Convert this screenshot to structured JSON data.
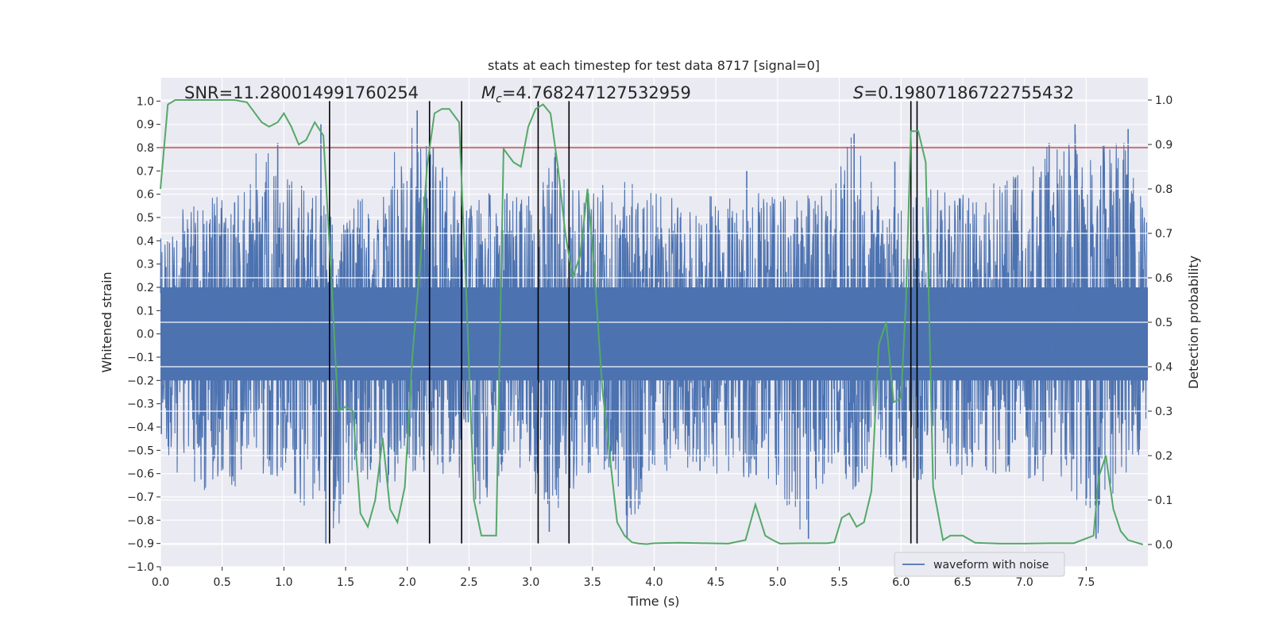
{
  "chart_data": {
    "type": "line",
    "title": "stats at each timestep for test data 8717 [signal=0]",
    "xlabel": "Time (s)",
    "ylabel_left": "Whitened strain",
    "ylabel_right": "Detection probability",
    "xlim": [
      0.0,
      8.0
    ],
    "ylim_left": [
      -1.0,
      1.1
    ],
    "ylim_right": [
      -0.05,
      1.05
    ],
    "x_ticks": [
      "0.0",
      "0.5",
      "1.0",
      "1.5",
      "2.0",
      "2.5",
      "3.0",
      "3.5",
      "4.0",
      "4.5",
      "5.0",
      "5.5",
      "6.0",
      "6.5",
      "7.0",
      "7.5"
    ],
    "x_tick_values": [
      0.0,
      0.5,
      1.0,
      1.5,
      2.0,
      2.5,
      3.0,
      3.5,
      4.0,
      4.5,
      5.0,
      5.5,
      6.0,
      6.5,
      7.0,
      7.5
    ],
    "y_left_ticks": [
      "−1.0",
      "−0.9",
      "−0.8",
      "−0.7",
      "−0.6",
      "−0.5",
      "−0.4",
      "−0.3",
      "−0.2",
      "−0.1",
      "0.0",
      "0.1",
      "0.2",
      "0.3",
      "0.4",
      "0.5",
      "0.6",
      "0.7",
      "0.8",
      "0.9",
      "1.0"
    ],
    "y_left_tick_values": [
      -1.0,
      -0.9,
      -0.8,
      -0.7,
      -0.6,
      -0.5,
      -0.4,
      -0.3,
      -0.2,
      -0.1,
      0.0,
      0.1,
      0.2,
      0.3,
      0.4,
      0.5,
      0.6,
      0.7,
      0.8,
      0.9,
      1.0
    ],
    "y_right_ticks": [
      "0.0",
      "0.1",
      "0.2",
      "0.3",
      "0.4",
      "0.5",
      "0.6",
      "0.7",
      "0.8",
      "0.9",
      "1.0"
    ],
    "y_right_tick_values": [
      0.0,
      0.1,
      0.2,
      0.3,
      0.4,
      0.5,
      0.6,
      0.7,
      0.8,
      0.9,
      1.0
    ],
    "grid": true,
    "legend": {
      "position": "lower-right",
      "entries": [
        "waveform with noise"
      ]
    },
    "annotations": {
      "snr": "SNR=11.280014991760254",
      "mc_symbol": "M",
      "mc_sub": "c",
      "mc_value": "=4.768247127532959",
      "s_symbol": "S",
      "s_value": "=0.19807186722755432"
    },
    "threshold_line": {
      "y": 0.8,
      "axis": "left",
      "color": "#c44e52"
    },
    "vertical_lines_x": [
      1.37,
      2.18,
      2.44,
      3.06,
      3.31,
      6.08,
      6.13
    ],
    "waveform": {
      "name": "waveform with noise",
      "color": "#4c72b0",
      "envelope_x": [
        0.0,
        0.2,
        0.4,
        0.6,
        0.8,
        1.0,
        1.2,
        1.4,
        1.6,
        1.8,
        2.0,
        2.2,
        2.4,
        2.6,
        2.8,
        3.0,
        3.2,
        3.4,
        3.6,
        3.8,
        4.0,
        4.2,
        4.4,
        4.6,
        4.8,
        5.0,
        5.2,
        5.4,
        5.6,
        5.8,
        6.0,
        6.2,
        6.4,
        6.6,
        6.8,
        7.0,
        7.2,
        7.4,
        7.6,
        7.8,
        7.99
      ],
      "envelope_upper": [
        0.42,
        0.55,
        0.6,
        0.6,
        0.82,
        0.7,
        0.62,
        0.55,
        0.58,
        0.62,
        0.96,
        0.8,
        0.6,
        0.6,
        0.65,
        0.65,
        0.78,
        0.62,
        0.68,
        0.66,
        0.62,
        0.6,
        0.6,
        0.6,
        0.62,
        0.6,
        0.6,
        0.62,
        0.86,
        0.6,
        0.55,
        0.65,
        0.6,
        0.62,
        0.66,
        0.7,
        0.82,
        0.9,
        0.82,
        0.88,
        0.55
      ],
      "envelope_lower": [
        -0.45,
        -0.68,
        -0.7,
        -0.68,
        -0.6,
        -0.62,
        -0.78,
        -0.9,
        -0.6,
        -0.7,
        -0.6,
        -0.62,
        -0.6,
        -0.78,
        -0.58,
        -0.65,
        -0.85,
        -0.6,
        -0.62,
        -0.88,
        -0.62,
        -0.6,
        -0.6,
        -0.62,
        -0.62,
        -0.65,
        -0.88,
        -0.6,
        -0.7,
        -0.62,
        -0.6,
        -0.65,
        -0.62,
        -0.6,
        -0.62,
        -0.62,
        -0.65,
        -0.7,
        -0.88,
        -0.62,
        -0.5
      ],
      "spikes": [
        {
          "x": 0.95,
          "y": 0.82
        },
        {
          "x": 1.3,
          "y": 0.9
        },
        {
          "x": 2.08,
          "y": 0.96
        },
        {
          "x": 2.21,
          "y": 0.8
        },
        {
          "x": 3.2,
          "y": 0.78
        },
        {
          "x": 4.75,
          "y": 0.7
        },
        {
          "x": 5.62,
          "y": 0.86
        },
        {
          "x": 5.95,
          "y": 0.74
        },
        {
          "x": 7.2,
          "y": 0.82
        },
        {
          "x": 7.41,
          "y": 0.9
        },
        {
          "x": 7.84,
          "y": 0.88
        },
        {
          "x": 1.34,
          "y": -0.9
        },
        {
          "x": 3.15,
          "y": -0.85
        },
        {
          "x": 3.78,
          "y": -0.88
        },
        {
          "x": 5.25,
          "y": -0.88
        },
        {
          "x": 7.58,
          "y": -0.88
        }
      ]
    },
    "probability": {
      "name": "detection probability",
      "color": "#55a868",
      "x": [
        0.0,
        0.06,
        0.12,
        0.2,
        0.3,
        0.4,
        0.5,
        0.6,
        0.7,
        0.74,
        0.82,
        0.88,
        0.95,
        1.0,
        1.06,
        1.12,
        1.18,
        1.25,
        1.32,
        1.38,
        1.44,
        1.5,
        1.56,
        1.62,
        1.68,
        1.74,
        1.8,
        1.86,
        1.92,
        1.98,
        2.04,
        2.1,
        2.16,
        2.22,
        2.28,
        2.34,
        2.42,
        2.48,
        2.54,
        2.6,
        2.66,
        2.72,
        2.78,
        2.86,
        2.92,
        2.98,
        3.04,
        3.1,
        3.16,
        3.22,
        3.28,
        3.34,
        3.4,
        3.46,
        3.52,
        3.58,
        3.64,
        3.7,
        3.76,
        3.82,
        3.88,
        3.94,
        4.0,
        4.2,
        4.4,
        4.6,
        4.74,
        4.82,
        4.9,
        4.96,
        5.02,
        5.2,
        5.4,
        5.46,
        5.52,
        5.58,
        5.64,
        5.7,
        5.76,
        5.82,
        5.88,
        5.94,
        6.0,
        6.04,
        6.08,
        6.14,
        6.2,
        6.26,
        6.34,
        6.4,
        6.44,
        6.5,
        6.6,
        6.8,
        7.0,
        7.2,
        7.4,
        7.56,
        7.6,
        7.66,
        7.72,
        7.78,
        7.84,
        7.9,
        7.96
      ],
      "y": [
        0.8,
        0.99,
        1.0,
        1.0,
        1.0,
        1.0,
        1.0,
        1.0,
        0.995,
        0.98,
        0.95,
        0.94,
        0.95,
        0.97,
        0.94,
        0.9,
        0.91,
        0.95,
        0.92,
        0.62,
        0.3,
        0.31,
        0.3,
        0.07,
        0.04,
        0.1,
        0.24,
        0.08,
        0.05,
        0.13,
        0.42,
        0.62,
        0.85,
        0.97,
        0.98,
        0.98,
        0.95,
        0.55,
        0.1,
        0.02,
        0.02,
        0.02,
        0.89,
        0.86,
        0.85,
        0.94,
        0.98,
        0.99,
        0.97,
        0.85,
        0.7,
        0.6,
        0.65,
        0.8,
        0.6,
        0.35,
        0.2,
        0.05,
        0.02,
        0.005,
        0.002,
        0.001,
        0.003,
        0.004,
        0.003,
        0.002,
        0.01,
        0.09,
        0.02,
        0.01,
        0.002,
        0.003,
        0.003,
        0.005,
        0.06,
        0.07,
        0.04,
        0.05,
        0.12,
        0.45,
        0.5,
        0.32,
        0.33,
        0.55,
        0.93,
        0.93,
        0.86,
        0.13,
        0.01,
        0.02,
        0.02,
        0.02,
        0.004,
        0.002,
        0.002,
        0.003,
        0.003,
        0.02,
        0.15,
        0.2,
        0.08,
        0.03,
        0.01,
        0.005,
        0.0
      ]
    }
  }
}
